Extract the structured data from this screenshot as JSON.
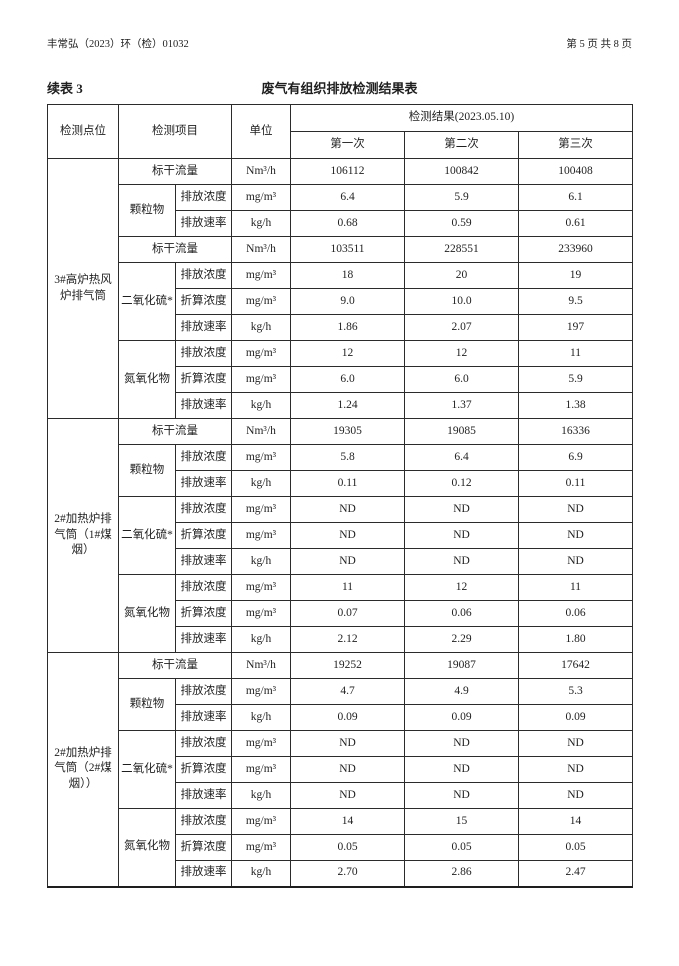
{
  "colors": {
    "page_bg": "#ffffff",
    "text": "#1f1f1f",
    "border": "#2b2b2b"
  },
  "page": {
    "doc_number": "丰常弘（2023）环（检）01032",
    "page_indicator": "第 5 页 共 8 页",
    "continuation_label": "续表 3",
    "table_title": "废气有组织排放检测结果表"
  },
  "table": {
    "headers": {
      "point": "检测点位",
      "item": "检测项目",
      "unit": "单位",
      "result_group": "检测结果(2023.05.10)",
      "runs": [
        "第一次",
        "第二次",
        "第三次"
      ]
    },
    "blocks": [
      {
        "point": "3#高炉热风炉排气筒",
        "rows": [
          {
            "flow": true,
            "param": "标干流量",
            "unit": "Nm³/h",
            "values": [
              "106112",
              "100842",
              "100408"
            ]
          },
          {
            "group": "颗粒物",
            "groupRows": 2,
            "param": "排放浓度",
            "unit": "mg/m³",
            "values": [
              "6.4",
              "5.9",
              "6.1"
            ]
          },
          {
            "param": "排放速率",
            "unit": "kg/h",
            "values": [
              "0.68",
              "0.59",
              "0.61"
            ]
          },
          {
            "flow": true,
            "param": "标干流量",
            "unit": "Nm³/h",
            "values": [
              "103511",
              "228551",
              "233960"
            ]
          },
          {
            "group": "二氧化硫*",
            "groupRows": 3,
            "param": "排放浓度",
            "unit": "mg/m³",
            "values": [
              "18",
              "20",
              "19"
            ]
          },
          {
            "param": "折算浓度",
            "unit": "mg/m³",
            "values": [
              "9.0",
              "10.0",
              "9.5"
            ]
          },
          {
            "param": "排放速率",
            "unit": "kg/h",
            "values": [
              "1.86",
              "2.07",
              "197"
            ]
          },
          {
            "group": "氮氧化物",
            "groupRows": 3,
            "param": "排放浓度",
            "unit": "mg/m³",
            "values": [
              "12",
              "12",
              "11"
            ]
          },
          {
            "param": "折算浓度",
            "unit": "mg/m³",
            "values": [
              "6.0",
              "6.0",
              "5.9"
            ]
          },
          {
            "param": "排放速率",
            "unit": "kg/h",
            "values": [
              "1.24",
              "1.37",
              "1.38"
            ]
          }
        ]
      },
      {
        "point": "2#加热炉排气筒（1#煤烟）",
        "rows": [
          {
            "flow": true,
            "param": "标干流量",
            "unit": "Nm³/h",
            "values": [
              "19305",
              "19085",
              "16336"
            ]
          },
          {
            "group": "颗粒物",
            "groupRows": 2,
            "param": "排放浓度",
            "unit": "mg/m³",
            "values": [
              "5.8",
              "6.4",
              "6.9"
            ]
          },
          {
            "param": "排放速率",
            "unit": "kg/h",
            "values": [
              "0.11",
              "0.12",
              "0.11"
            ]
          },
          {
            "group": "二氧化硫*",
            "groupRows": 3,
            "param": "排放浓度",
            "unit": "mg/m³",
            "values": [
              "ND",
              "ND",
              "ND"
            ]
          },
          {
            "param": "折算浓度",
            "unit": "mg/m³",
            "values": [
              "ND",
              "ND",
              "ND"
            ]
          },
          {
            "param": "排放速率",
            "unit": "kg/h",
            "values": [
              "ND",
              "ND",
              "ND"
            ]
          },
          {
            "group": "氮氧化物",
            "groupRows": 3,
            "param": "排放浓度",
            "unit": "mg/m³",
            "values": [
              "11",
              "12",
              "11"
            ]
          },
          {
            "param": "折算浓度",
            "unit": "mg/m³",
            "values": [
              "0.07",
              "0.06",
              "0.06"
            ]
          },
          {
            "param": "排放速率",
            "unit": "kg/h",
            "values": [
              "2.12",
              "2.29",
              "1.80"
            ]
          }
        ]
      },
      {
        "point": "2#加热炉排气筒（2#煤烟））",
        "rows": [
          {
            "flow": true,
            "param": "标干流量",
            "unit": "Nm³/h",
            "values": [
              "19252",
              "19087",
              "17642"
            ]
          },
          {
            "group": "颗粒物",
            "groupRows": 2,
            "param": "排放浓度",
            "unit": "mg/m³",
            "values": [
              "4.7",
              "4.9",
              "5.3"
            ]
          },
          {
            "param": "排放速率",
            "unit": "kg/h",
            "values": [
              "0.09",
              "0.09",
              "0.09"
            ]
          },
          {
            "group": "二氧化硫*",
            "groupRows": 3,
            "param": "排放浓度",
            "unit": "mg/m³",
            "values": [
              "ND",
              "ND",
              "ND"
            ]
          },
          {
            "param": "折算浓度",
            "unit": "mg/m³",
            "values": [
              "ND",
              "ND",
              "ND"
            ]
          },
          {
            "param": "排放速率",
            "unit": "kg/h",
            "values": [
              "ND",
              "ND",
              "ND"
            ]
          },
          {
            "group": "氮氧化物",
            "groupRows": 3,
            "param": "排放浓度",
            "unit": "mg/m³",
            "values": [
              "14",
              "15",
              "14"
            ]
          },
          {
            "param": "折算浓度",
            "unit": "mg/m³",
            "values": [
              "0.05",
              "0.05",
              "0.05"
            ]
          },
          {
            "param": "排放速率",
            "unit": "kg/h",
            "values": [
              "2.70",
              "2.86",
              "2.47"
            ]
          }
        ]
      }
    ]
  }
}
